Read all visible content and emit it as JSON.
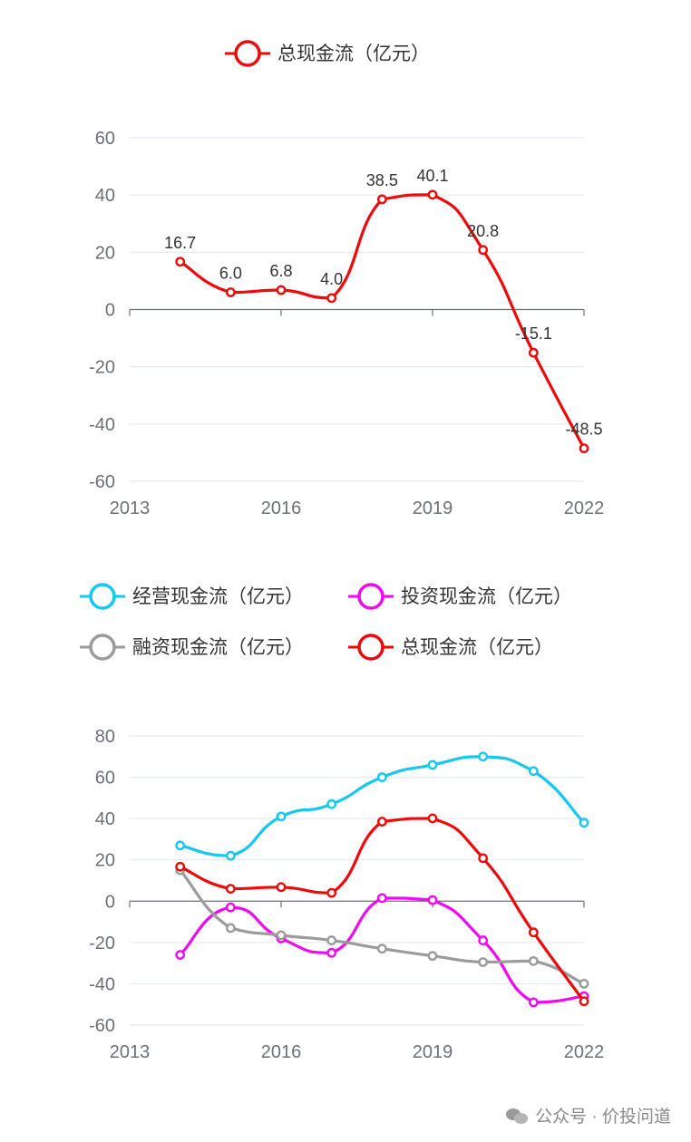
{
  "chart_data": [
    {
      "type": "line",
      "title": "",
      "x": [
        2014,
        2015,
        2016,
        2017,
        2018,
        2019,
        2020,
        2021,
        2022
      ],
      "xticks": [
        "2013",
        "2016",
        "2019",
        "2022"
      ],
      "xlim": [
        2013,
        2022
      ],
      "ylim": [
        -60,
        60
      ],
      "yticks": [
        "60",
        "40",
        "20",
        "0",
        "-20",
        "-40",
        "-60"
      ],
      "series": [
        {
          "name": "总现金流（亿元）",
          "color": "#ee0a0a",
          "values": [
            16.7,
            6.0,
            6.8,
            4.0,
            38.5,
            40.1,
            20.8,
            -15.1,
            -48.5
          ],
          "labels": [
            "16.7",
            "6.0",
            "6.8",
            "4.0",
            "38.5",
            "40.1",
            "20.8",
            "-15.1",
            "-48.5"
          ]
        }
      ]
    },
    {
      "type": "line",
      "title": "",
      "x": [
        2014,
        2015,
        2016,
        2017,
        2018,
        2019,
        2020,
        2021,
        2022
      ],
      "xticks": [
        "2013",
        "2016",
        "2019",
        "2022"
      ],
      "xlim": [
        2013,
        2022
      ],
      "ylim": [
        -60,
        80
      ],
      "yticks": [
        "80",
        "60",
        "40",
        "20",
        "0",
        "-20",
        "-40",
        "-60"
      ],
      "series": [
        {
          "name": "经营现金流（亿元）",
          "color": "#14c8f0",
          "values": [
            27,
            22,
            41,
            47,
            60,
            66,
            70,
            63,
            38
          ]
        },
        {
          "name": "投资现金流（亿元）",
          "color": "#f00af0",
          "values": [
            -26,
            -3,
            -18,
            -25,
            1.5,
            0.5,
            -19,
            -49,
            -46
          ]
        },
        {
          "name": "融资现金流（亿元）",
          "color": "#9b9b9b",
          "values": [
            15,
            -13,
            -16.5,
            -19,
            -23,
            -26.5,
            -29.5,
            -29,
            -40
          ]
        },
        {
          "name": "总现金流（亿元）",
          "color": "#ee0a0a",
          "values": [
            16.7,
            6.0,
            6.8,
            4.0,
            38.5,
            40.1,
            20.8,
            -15.1,
            -48.5
          ]
        }
      ]
    }
  ],
  "watermark": {
    "text": "公众号 · 价投问道"
  }
}
